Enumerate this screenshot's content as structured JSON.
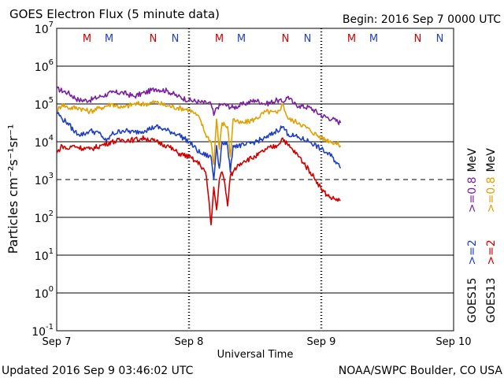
{
  "chart_data": {
    "type": "line",
    "title": "GOES Electron Flux (5 minute data)",
    "begin_label": "Begin: 2016 Sep 7 0000 UTC",
    "xlabel": "Universal Time",
    "ylabel": "Particles cm⁻²s⁻¹sr⁻¹",
    "x_unit": "hours since begin",
    "xlim": [
      0,
      72
    ],
    "ylim_log10": [
      -1,
      7
    ],
    "day_ticks": [
      {
        "t": 0,
        "label": "Sep 7"
      },
      {
        "t": 24,
        "label": "Sep 8"
      },
      {
        "t": 48,
        "label": "Sep 9"
      },
      {
        "t": 72,
        "label": "Sep 10"
      }
    ],
    "y_ticks": [
      {
        "exp": -1,
        "base": "10",
        "sup": "-1"
      },
      {
        "exp": 0,
        "base": "10",
        "sup": "0"
      },
      {
        "exp": 1,
        "base": "10",
        "sup": "1"
      },
      {
        "exp": 2,
        "base": "10",
        "sup": "2"
      },
      {
        "exp": 3,
        "base": "10",
        "sup": "3"
      },
      {
        "exp": 4,
        "base": "10",
        "sup": "4"
      },
      {
        "exp": 5,
        "base": "10",
        "sup": "5"
      },
      {
        "exp": 6,
        "base": "10",
        "sup": "6"
      },
      {
        "exp": 7,
        "base": "10",
        "sup": "7"
      }
    ],
    "dashed_level_exp": 3,
    "markers": [
      {
        "t": 5.5,
        "label": "M",
        "color": "#d00000"
      },
      {
        "t": 9.5,
        "label": "M",
        "color": "#1f3fbf"
      },
      {
        "t": 17.5,
        "label": "N",
        "color": "#d00000"
      },
      {
        "t": 21.5,
        "label": "N",
        "color": "#1f3fbf"
      },
      {
        "t": 29.5,
        "label": "M",
        "color": "#d00000"
      },
      {
        "t": 33.5,
        "label": "M",
        "color": "#1f3fbf"
      },
      {
        "t": 41.5,
        "label": "N",
        "color": "#d00000"
      },
      {
        "t": 45.5,
        "label": "N",
        "color": "#1f3fbf"
      },
      {
        "t": 53.5,
        "label": "M",
        "color": "#d00000"
      },
      {
        "t": 57.5,
        "label": "M",
        "color": "#1f3fbf"
      },
      {
        "t": 65.5,
        "label": "N",
        "color": "#d00000"
      },
      {
        "t": 69.5,
        "label": "N",
        "color": "#1f3fbf"
      }
    ],
    "legend": [
      {
        "satellite": "GOES15",
        "threshold": ">=2",
        "threshold2": ">=0.8",
        "unit": "MeV",
        "color": "#1f3fbf",
        "color2": "#7a1fa0"
      },
      {
        "satellite": "GOES13",
        "threshold": ">=2",
        "threshold2": ">=0.8",
        "unit": "MeV",
        "color": "#d00000",
        "color2": "#e0a000"
      }
    ],
    "series": [
      {
        "name": "GOES15 >=0.8 MeV",
        "color": "#7a1fa0",
        "t": [
          0,
          2,
          4,
          6,
          8,
          10,
          12,
          14,
          16,
          18,
          20,
          22,
          24,
          26,
          28,
          28.5,
          29,
          30,
          32,
          34,
          36,
          38,
          40,
          41,
          42,
          43,
          44,
          46,
          48,
          50,
          51.5
        ],
        "log10": [
          5.4,
          5.3,
          5.1,
          5.1,
          5.2,
          5.3,
          5.3,
          5.2,
          5.3,
          5.4,
          5.35,
          5.2,
          5.1,
          5.05,
          5.0,
          4.7,
          4.9,
          5.0,
          4.9,
          5.0,
          5.1,
          5.0,
          5.1,
          5.05,
          5.2,
          5.0,
          4.95,
          4.9,
          4.7,
          4.6,
          4.5
        ]
      },
      {
        "name": "GOES13 >=0.8 MeV",
        "color": "#e0a000",
        "t": [
          0,
          1,
          2,
          4,
          6,
          8,
          10,
          12,
          14,
          16,
          18,
          20,
          22,
          24,
          25,
          26,
          27,
          28,
          28.5,
          29,
          29.5,
          30,
          31,
          31.5,
          32,
          33,
          34,
          36,
          38,
          40,
          41,
          42,
          44,
          46,
          48,
          50,
          51.5
        ],
        "log10": [
          4.8,
          5.0,
          4.9,
          4.9,
          4.8,
          4.9,
          5.0,
          4.9,
          5.0,
          5.0,
          5.05,
          4.95,
          4.9,
          4.85,
          4.75,
          4.6,
          4.2,
          4.0,
          3.4,
          4.6,
          3.8,
          4.5,
          4.4,
          3.6,
          4.6,
          4.5,
          4.5,
          4.6,
          4.8,
          4.75,
          5.0,
          4.6,
          4.5,
          4.3,
          4.1,
          4.0,
          3.9
        ]
      },
      {
        "name": "GOES15 >=2 MeV",
        "color": "#1f3fbf",
        "t": [
          0,
          1,
          2,
          3,
          4,
          5,
          6,
          8,
          9,
          10,
          12,
          14,
          16,
          18,
          20,
          22,
          24,
          26,
          28,
          28.5,
          29,
          29.5,
          30,
          31,
          31.5,
          32,
          34,
          36,
          38,
          40,
          41,
          42,
          44,
          46,
          48,
          50,
          51.5
        ],
        "log10": [
          4.8,
          4.6,
          4.5,
          4.3,
          4.2,
          4.2,
          4.3,
          4.2,
          4.0,
          4.2,
          4.3,
          4.25,
          4.3,
          4.4,
          4.3,
          4.2,
          4.0,
          3.7,
          3.6,
          3.0,
          3.9,
          3.3,
          4.0,
          3.9,
          3.2,
          3.9,
          3.9,
          4.0,
          4.1,
          4.3,
          4.4,
          4.2,
          4.1,
          4.0,
          3.8,
          3.6,
          3.3
        ]
      },
      {
        "name": "GOES13 >=2 MeV",
        "color": "#d00000",
        "t": [
          0,
          1,
          2,
          3,
          4,
          6,
          8,
          10,
          12,
          14,
          16,
          18,
          20,
          22,
          24,
          25,
          26,
          27,
          27.5,
          28,
          28.5,
          29,
          29.5,
          30,
          30.5,
          31,
          31.5,
          32,
          33,
          34,
          36,
          38,
          40,
          41,
          42,
          44,
          46,
          47,
          48,
          49,
          50,
          51.5
        ],
        "log10": [
          3.7,
          3.9,
          3.8,
          3.9,
          3.85,
          3.8,
          3.9,
          4.0,
          4.05,
          4.05,
          4.1,
          4.0,
          3.9,
          3.7,
          3.6,
          3.5,
          3.4,
          3.2,
          2.6,
          1.8,
          2.8,
          2.2,
          3.0,
          3.2,
          2.9,
          2.3,
          3.1,
          3.2,
          3.4,
          3.5,
          3.6,
          3.8,
          3.9,
          4.1,
          3.9,
          3.6,
          3.2,
          3.0,
          2.75,
          2.6,
          2.5,
          2.45
        ]
      }
    ]
  },
  "footer": {
    "updated": "Updated 2016 Sep  9 03:46:02 UTC",
    "credit": "NOAA/SWPC Boulder, CO USA"
  }
}
